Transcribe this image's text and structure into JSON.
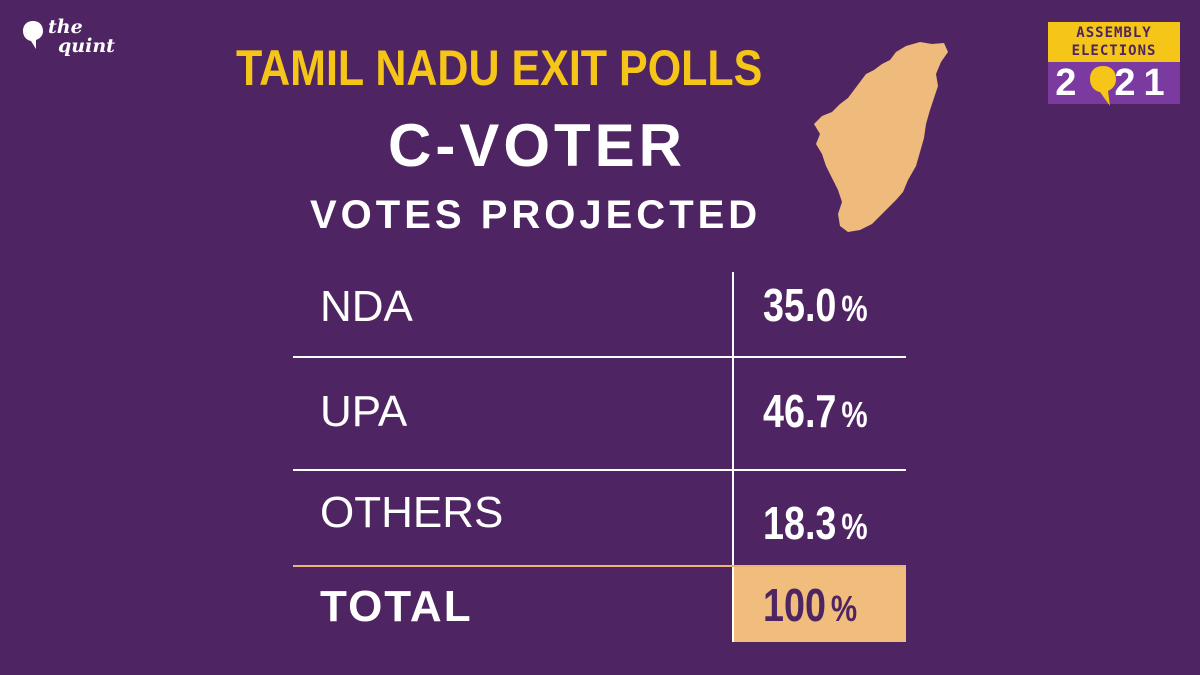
{
  "brand": {
    "line1": "the",
    "line2": "quint"
  },
  "title": "TAMIL NADU EXIT POLLS",
  "subtitle": "C-VOTER",
  "subtitle2": "VOTES PROJECTED",
  "badge": {
    "line1": "ASSEMBLY",
    "line2": "ELECTIONS",
    "year_a": "2",
    "year_b": "21"
  },
  "table": {
    "rows": [
      {
        "label": "NDA",
        "value": "35.0",
        "unit": "%"
      },
      {
        "label": "UPA",
        "value": "46.7",
        "unit": "%"
      },
      {
        "label": "OTHERS",
        "value": "18.3",
        "unit": "%"
      },
      {
        "label": "TOTAL",
        "value": "100",
        "unit": "%"
      }
    ]
  },
  "colors": {
    "background": "#4f2462",
    "title": "#f5c518",
    "map": "#efbb7c",
    "total_cell": "#f0bd7d",
    "badge_top": "#f5c518",
    "badge_bottom": "#7b3aa0"
  },
  "icons": {
    "logo": "speech-bubble-logo-icon",
    "map": "tamil-nadu-map-icon"
  }
}
